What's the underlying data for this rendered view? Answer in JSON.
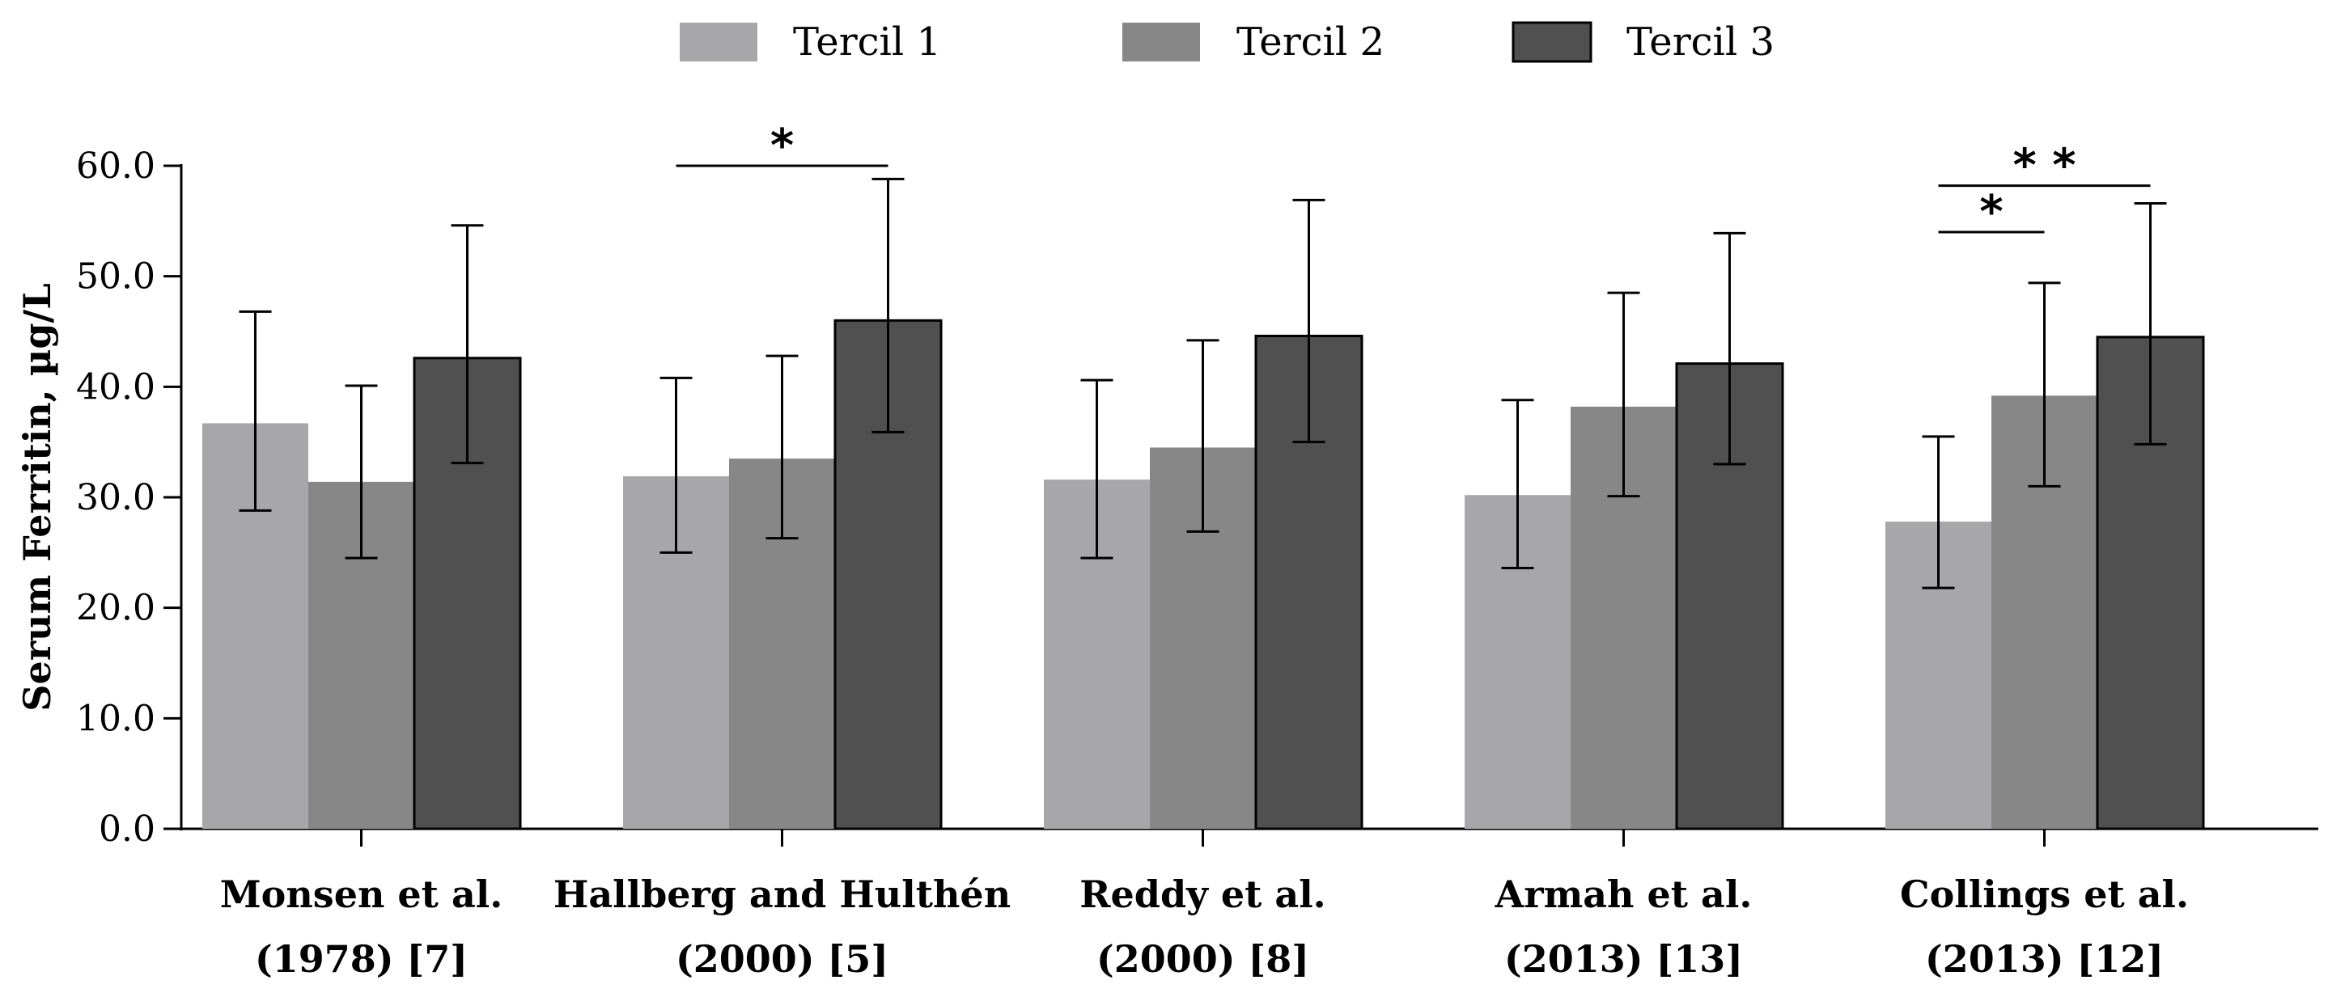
{
  "chart_data": {
    "type": "bar",
    "title": "",
    "xlabel": "",
    "ylabel": "Serum Ferritin, µg/L",
    "ylim": [
      0,
      60
    ],
    "yticks": [
      "0.0",
      "10.0",
      "20.0",
      "30.0",
      "40.0",
      "50.0",
      "60.0"
    ],
    "ytick_values": [
      0,
      10,
      20,
      30,
      40,
      50,
      60
    ],
    "legend_position": "top",
    "categories": [
      [
        "Monsen et al.",
        "(1978) [7]"
      ],
      [
        "Hallberg and Hulthén",
        "(2000) [5]"
      ],
      [
        "Reddy et al.",
        "(2000) [8]"
      ],
      [
        "Armah et al.",
        "(2013) [13]"
      ],
      [
        "Collings et al.",
        "(2013) [12]"
      ]
    ],
    "series": [
      {
        "name": "Tercil 1",
        "color": "#a7a7a9",
        "values": [
          36.7,
          31.9,
          31.6,
          30.2,
          27.8
        ],
        "error_low": [
          28.8,
          25.0,
          24.5,
          23.6,
          21.8
        ],
        "error_high": [
          46.8,
          40.8,
          40.6,
          38.8,
          35.5
        ]
      },
      {
        "name": "Tercil 2",
        "color": "#878787",
        "values": [
          31.4,
          33.5,
          34.5,
          38.2,
          39.2
        ],
        "error_low": [
          24.5,
          26.3,
          26.9,
          30.1,
          31.0
        ],
        "error_high": [
          40.1,
          42.8,
          44.2,
          48.5,
          49.4
        ]
      },
      {
        "name": "Tercil 3",
        "color": "#505050",
        "values": [
          42.6,
          46.0,
          44.6,
          42.1,
          44.5
        ],
        "error_low": [
          33.1,
          35.9,
          35.0,
          33.0,
          34.8
        ],
        "error_high": [
          54.6,
          58.8,
          56.9,
          53.9,
          56.6
        ]
      }
    ],
    "significance": [
      {
        "category_index": 1,
        "from_series": 0,
        "to_series": 2,
        "y": 60.0,
        "label": "*"
      },
      {
        "category_index": 4,
        "from_series": 0,
        "to_series": 1,
        "y": 54.0,
        "label": "*"
      },
      {
        "category_index": 4,
        "from_series": 0,
        "to_series": 2,
        "y": 58.2,
        "label": "**"
      }
    ]
  }
}
